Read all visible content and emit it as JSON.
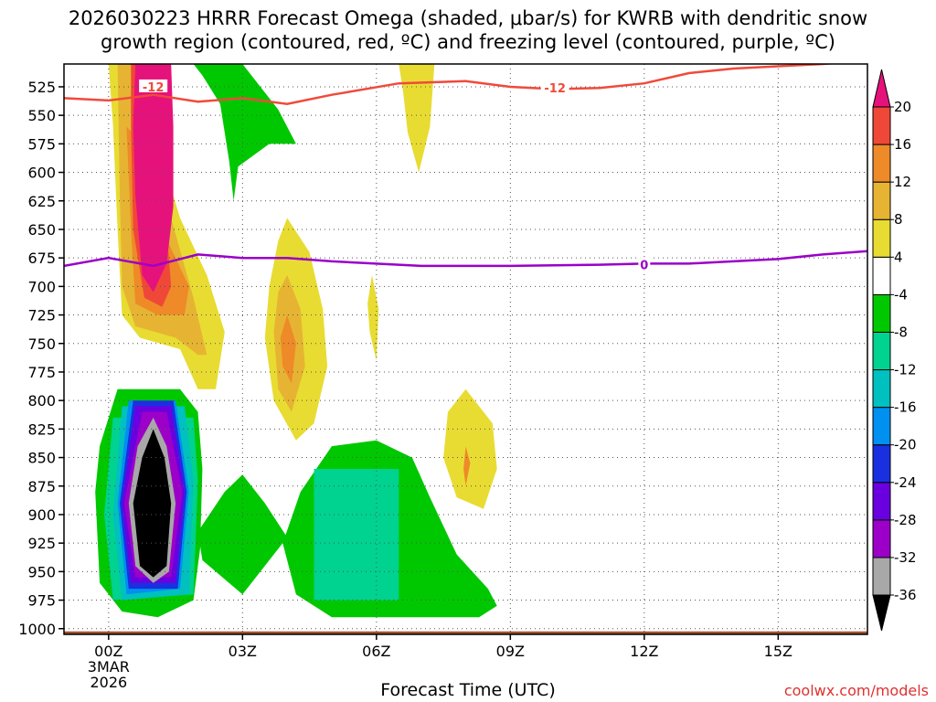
{
  "chart_data": {
    "type": "heatmap",
    "title_line1": "2026030223 HRRR Forecast Omega (shaded, μbar/s) for KWRB with dendritic snow",
    "title_line2": "growth region (contoured, red, ºC) and freezing level (contoured, purple, ºC)",
    "xlabel": "Forecast Time (UTC)",
    "credit": "coolwx.com/models",
    "x_range_hours": [
      -1.0,
      17.0
    ],
    "y_range_hpa": [
      1005,
      505
    ],
    "x_ticks": [
      {
        "hour": 0,
        "label": "00Z",
        "sub": [
          "3MAR",
          "2026"
        ]
      },
      {
        "hour": 3,
        "label": "03Z"
      },
      {
        "hour": 6,
        "label": "06Z"
      },
      {
        "hour": 9,
        "label": "09Z"
      },
      {
        "hour": 12,
        "label": "12Z"
      },
      {
        "hour": 15,
        "label": "15Z"
      }
    ],
    "y_ticks": [
      525,
      550,
      575,
      600,
      625,
      650,
      675,
      700,
      725,
      750,
      775,
      800,
      825,
      850,
      875,
      900,
      925,
      950,
      975,
      1000
    ],
    "colorbar": {
      "levels": [
        -36,
        -32,
        -28,
        -24,
        -20,
        -16,
        -12,
        -8,
        -4,
        4,
        8,
        12,
        16,
        20
      ],
      "colors": [
        "#000000",
        "#a8a8a8",
        "#9c00c8",
        "#6a00e0",
        "#1a30e0",
        "#0090f0",
        "#00c0c0",
        "#00d290",
        "#00c800",
        "#ffffff",
        "#e8dc32",
        "#e6b432",
        "#ee8a28",
        "#f04838",
        "#e6127c"
      ]
    },
    "omega_regions": [
      {
        "value": 6,
        "color": "#e8dc32",
        "points": [
          [
            0.0,
            505
          ],
          [
            0.7,
            505
          ],
          [
            1.1,
            575
          ],
          [
            1.6,
            640
          ],
          [
            2.2,
            690
          ],
          [
            2.6,
            740
          ],
          [
            2.4,
            790
          ],
          [
            2.0,
            790
          ],
          [
            1.6,
            755
          ],
          [
            0.7,
            745
          ],
          [
            0.3,
            725
          ],
          [
            0.2,
            650
          ],
          [
            0.1,
            560
          ]
        ]
      },
      {
        "value": 10,
        "color": "#e6b432",
        "points": [
          [
            0.2,
            505
          ],
          [
            0.55,
            505
          ],
          [
            0.9,
            560
          ],
          [
            1.4,
            640
          ],
          [
            1.9,
            710
          ],
          [
            2.2,
            760
          ],
          [
            2.0,
            760
          ],
          [
            1.5,
            745
          ],
          [
            0.6,
            735
          ],
          [
            0.3,
            700
          ],
          [
            0.25,
            620
          ]
        ]
      },
      {
        "value": 14,
        "color": "#ee8a28",
        "points": [
          [
            0.4,
            560
          ],
          [
            0.9,
            580
          ],
          [
            1.2,
            650
          ],
          [
            1.8,
            700
          ],
          [
            1.7,
            725
          ],
          [
            1.1,
            725
          ],
          [
            0.6,
            715
          ],
          [
            0.5,
            650
          ]
        ]
      },
      {
        "value": 18,
        "color": "#f04838",
        "points": [
          [
            0.5,
            505
          ],
          [
            0.7,
            505
          ],
          [
            1.1,
            560
          ],
          [
            1.3,
            650
          ],
          [
            1.4,
            700
          ],
          [
            1.2,
            718
          ],
          [
            0.8,
            710
          ],
          [
            0.55,
            650
          ],
          [
            0.5,
            560
          ]
        ]
      },
      {
        "value": 22,
        "color": "#e6127c",
        "points": [
          [
            0.6,
            505
          ],
          [
            1.4,
            505
          ],
          [
            1.45,
            560
          ],
          [
            1.45,
            630
          ],
          [
            1.3,
            680
          ],
          [
            1.0,
            705
          ],
          [
            0.75,
            690
          ],
          [
            0.6,
            620
          ],
          [
            0.55,
            560
          ]
        ]
      },
      {
        "value": 6,
        "color": "#e8dc32",
        "points": [
          [
            4.0,
            640
          ],
          [
            4.5,
            670
          ],
          [
            4.8,
            720
          ],
          [
            4.9,
            770
          ],
          [
            4.6,
            820
          ],
          [
            4.2,
            835
          ],
          [
            3.7,
            800
          ],
          [
            3.5,
            745
          ],
          [
            3.6,
            700
          ],
          [
            3.8,
            660
          ]
        ]
      },
      {
        "value": 10,
        "color": "#e6b432",
        "points": [
          [
            4.0,
            690
          ],
          [
            4.3,
            720
          ],
          [
            4.4,
            770
          ],
          [
            4.1,
            810
          ],
          [
            3.8,
            790
          ],
          [
            3.7,
            740
          ],
          [
            3.8,
            705
          ]
        ]
      },
      {
        "value": 14,
        "color": "#ee8a28",
        "points": [
          [
            4.0,
            725
          ],
          [
            4.2,
            750
          ],
          [
            4.1,
            785
          ],
          [
            3.9,
            770
          ],
          [
            3.85,
            745
          ]
        ]
      },
      {
        "value": 6,
        "color": "#e8dc32",
        "points": [
          [
            6.5,
            505
          ],
          [
            7.3,
            505
          ],
          [
            7.2,
            560
          ],
          [
            6.95,
            600
          ],
          [
            6.7,
            565
          ],
          [
            6.6,
            530
          ]
        ]
      },
      {
        "value": 6,
        "color": "#e8dc32",
        "points": [
          [
            5.9,
            690
          ],
          [
            6.05,
            720
          ],
          [
            6.0,
            765
          ],
          [
            5.85,
            740
          ],
          [
            5.8,
            715
          ]
        ]
      },
      {
        "value": 6,
        "color": "#e8dc32",
        "points": [
          [
            8.0,
            790
          ],
          [
            8.6,
            820
          ],
          [
            8.7,
            860
          ],
          [
            8.4,
            895
          ],
          [
            7.8,
            885
          ],
          [
            7.5,
            850
          ],
          [
            7.6,
            810
          ]
        ]
      },
      {
        "value": 10,
        "color": "#ee8a28",
        "points": [
          [
            8.0,
            840
          ],
          [
            8.1,
            855
          ],
          [
            8.0,
            875
          ],
          [
            7.95,
            860
          ]
        ]
      },
      {
        "value": -6,
        "color": "#00c800",
        "points": [
          [
            1.9,
            505
          ],
          [
            3.0,
            505
          ],
          [
            3.8,
            545
          ],
          [
            4.2,
            575
          ],
          [
            3.6,
            575
          ],
          [
            2.9,
            595
          ],
          [
            2.8,
            625
          ],
          [
            2.7,
            590
          ],
          [
            2.5,
            540
          ],
          [
            2.1,
            515
          ]
        ]
      },
      {
        "value": -6,
        "color": "#00c800",
        "points": [
          [
            0.2,
            790
          ],
          [
            1.6,
            790
          ],
          [
            2.0,
            810
          ],
          [
            2.1,
            860
          ],
          [
            2.05,
            930
          ],
          [
            1.9,
            975
          ],
          [
            1.1,
            990
          ],
          [
            0.3,
            985
          ],
          [
            -0.2,
            960
          ],
          [
            -0.3,
            880
          ],
          [
            -0.2,
            840
          ]
        ]
      },
      {
        "value": -6,
        "color": "#00c800",
        "points": [
          [
            2.0,
            915
          ],
          [
            2.6,
            880
          ],
          [
            3.0,
            865
          ],
          [
            3.5,
            890
          ],
          [
            4.0,
            920
          ],
          [
            3.0,
            970
          ],
          [
            2.1,
            940
          ]
        ]
      },
      {
        "value": -6,
        "color": "#00c800",
        "points": [
          [
            5.0,
            840
          ],
          [
            6.0,
            835
          ],
          [
            6.8,
            850
          ],
          [
            7.2,
            885
          ],
          [
            7.8,
            935
          ],
          [
            8.5,
            965
          ],
          [
            8.7,
            980
          ],
          [
            8.3,
            990
          ],
          [
            6.0,
            990
          ],
          [
            5.0,
            990
          ],
          [
            4.2,
            970
          ],
          [
            3.9,
            925
          ],
          [
            4.3,
            880
          ]
        ]
      },
      {
        "value": -10,
        "color": "#00d290",
        "points": [
          [
            4.6,
            860
          ],
          [
            6.5,
            860
          ],
          [
            6.5,
            975
          ],
          [
            4.6,
            975
          ]
        ]
      },
      {
        "value": -10,
        "color": "#00d290",
        "points": [
          [
            0.1,
            815
          ],
          [
            1.9,
            815
          ],
          [
            2.0,
            870
          ],
          [
            1.9,
            970
          ],
          [
            0.1,
            975
          ],
          [
            -0.1,
            900
          ]
        ]
      },
      {
        "value": -14,
        "color": "#00c0c0",
        "points": [
          [
            0.3,
            805
          ],
          [
            1.7,
            805
          ],
          [
            1.9,
            870
          ],
          [
            1.8,
            970
          ],
          [
            0.3,
            975
          ],
          [
            0.1,
            900
          ]
        ]
      },
      {
        "value": -18,
        "color": "#0090f0",
        "points": [
          [
            0.45,
            800
          ],
          [
            1.5,
            800
          ],
          [
            1.8,
            880
          ],
          [
            1.6,
            965
          ],
          [
            0.4,
            970
          ],
          [
            0.2,
            890
          ]
        ]
      },
      {
        "value": -22,
        "color": "#1a30e0",
        "points": [
          [
            0.55,
            800
          ],
          [
            1.45,
            800
          ],
          [
            1.75,
            880
          ],
          [
            1.55,
            965
          ],
          [
            0.45,
            965
          ],
          [
            0.25,
            890
          ]
        ]
      },
      {
        "value": -26,
        "color": "#6a00e0",
        "points": [
          [
            0.6,
            805
          ],
          [
            1.4,
            805
          ],
          [
            1.7,
            880
          ],
          [
            1.5,
            960
          ],
          [
            0.5,
            960
          ],
          [
            0.3,
            890
          ]
        ]
      },
      {
        "value": -30,
        "color": "#9c00c8",
        "points": [
          [
            0.75,
            810
          ],
          [
            1.3,
            810
          ],
          [
            1.65,
            880
          ],
          [
            1.4,
            955
          ],
          [
            0.6,
            955
          ],
          [
            0.35,
            890
          ]
        ]
      },
      {
        "value": -34,
        "color": "#a8a8a8",
        "points": [
          [
            1.0,
            815
          ],
          [
            1.3,
            840
          ],
          [
            1.5,
            890
          ],
          [
            1.35,
            950
          ],
          [
            1.0,
            960
          ],
          [
            0.6,
            945
          ],
          [
            0.45,
            890
          ],
          [
            0.65,
            840
          ]
        ]
      },
      {
        "value": -38,
        "color": "#000000",
        "points": [
          [
            1.0,
            825
          ],
          [
            1.25,
            850
          ],
          [
            1.4,
            890
          ],
          [
            1.3,
            945
          ],
          [
            1.0,
            955
          ],
          [
            0.7,
            945
          ],
          [
            0.55,
            890
          ],
          [
            0.75,
            850
          ]
        ]
      }
    ],
    "terrain": {
      "color": "#a0522d",
      "top_hpa": 1000
    },
    "contours": [
      {
        "name": "dendritic-growth -12C",
        "color": "#f04a3a",
        "label": "-12",
        "label_positions": [
          [
            1.0,
            525
          ],
          [
            10.0,
            526
          ]
        ],
        "points": [
          [
            -1.0,
            535
          ],
          [
            0.0,
            537
          ],
          [
            1.0,
            532
          ],
          [
            2.0,
            538
          ],
          [
            3.0,
            535
          ],
          [
            4.0,
            540
          ],
          [
            5.0,
            532
          ],
          [
            6.5,
            522
          ],
          [
            8.0,
            520
          ],
          [
            9.0,
            525
          ],
          [
            10.0,
            527
          ],
          [
            11.0,
            526
          ],
          [
            12.0,
            522
          ],
          [
            13.0,
            513
          ],
          [
            14.0,
            509
          ],
          [
            15.0,
            507
          ],
          [
            16.0,
            505
          ],
          [
            17.0,
            502
          ]
        ]
      },
      {
        "name": "freezing-level 0C",
        "color": "#9a00c8",
        "label": "0",
        "label_positions": [
          [
            12.0,
            681
          ]
        ],
        "points": [
          [
            -1.0,
            682
          ],
          [
            0.0,
            675
          ],
          [
            1.0,
            682
          ],
          [
            2.0,
            672
          ],
          [
            3.0,
            675
          ],
          [
            4.0,
            675
          ],
          [
            5.0,
            678
          ],
          [
            7.0,
            682
          ],
          [
            9.0,
            682
          ],
          [
            11.0,
            681
          ],
          [
            12.0,
            680
          ],
          [
            13.0,
            680
          ],
          [
            14.0,
            678
          ],
          [
            15.0,
            676
          ],
          [
            16.0,
            672
          ],
          [
            17.0,
            669
          ]
        ]
      }
    ]
  }
}
